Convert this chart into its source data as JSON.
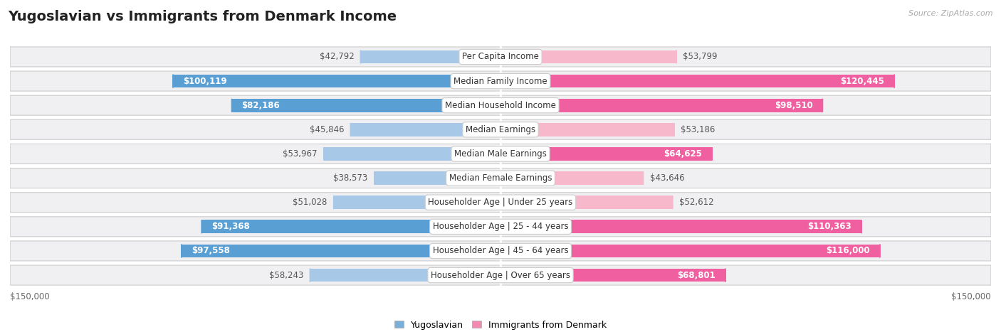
{
  "title": "Yugoslavian vs Immigrants from Denmark Income",
  "source": "Source: ZipAtlas.com",
  "categories": [
    "Per Capita Income",
    "Median Family Income",
    "Median Household Income",
    "Median Earnings",
    "Median Male Earnings",
    "Median Female Earnings",
    "Householder Age | Under 25 years",
    "Householder Age | 25 - 44 years",
    "Householder Age | 45 - 64 years",
    "Householder Age | Over 65 years"
  ],
  "yugoslavian": [
    42792,
    100119,
    82186,
    45846,
    53967,
    38573,
    51028,
    91368,
    97558,
    58243
  ],
  "denmark": [
    53799,
    120445,
    98510,
    53186,
    64625,
    43646,
    52612,
    110363,
    116000,
    68801
  ],
  "yugo_color_light": "#a8c8e8",
  "yugo_color_dark": "#5a9fd4",
  "denm_color_light": "#f8b8cc",
  "denm_color_dark": "#f060a0",
  "threshold": 60000,
  "max_val": 150000,
  "legend_yugoslav": "Yugoslavian",
  "legend_denmark": "Immigrants from Denmark",
  "title_fontsize": 14,
  "label_fontsize": 8.5,
  "category_fontsize": 8.5
}
